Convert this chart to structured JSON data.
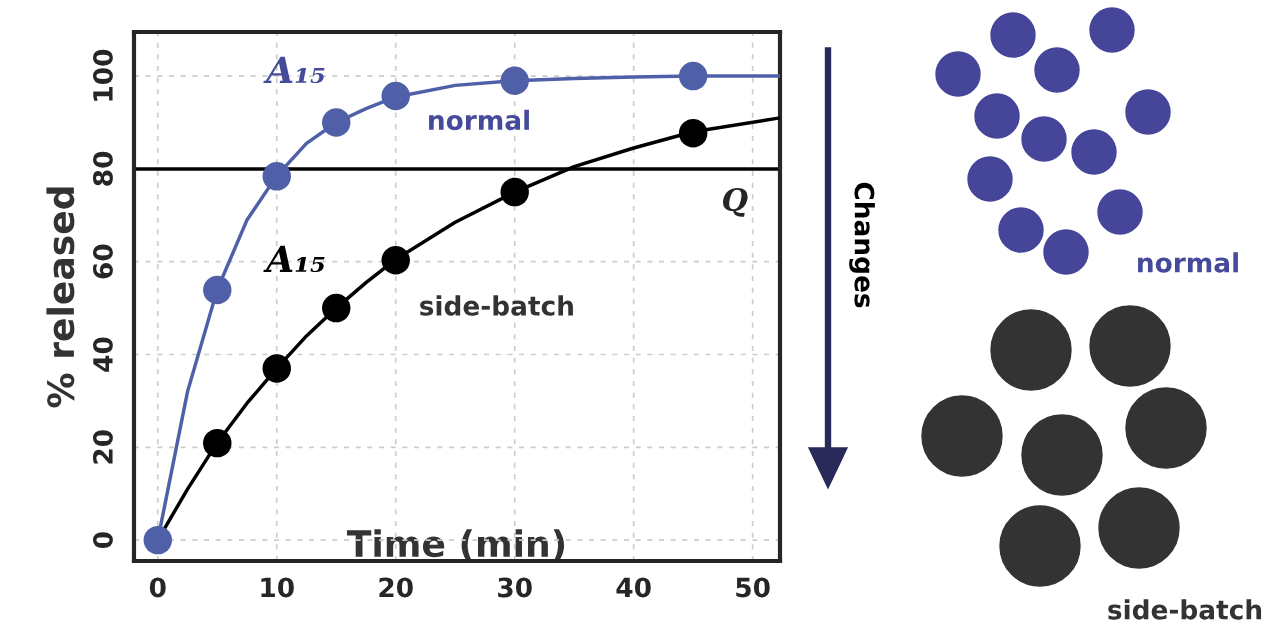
{
  "chart_data": {
    "type": "line",
    "xlabel": "Time (min)",
    "ylabel": "% released",
    "xlim": [
      -2,
      52.3
    ],
    "ylim": [
      -4.5,
      109.5
    ],
    "xticks": [
      0,
      10,
      20,
      30,
      40,
      50
    ],
    "yticks": [
      0,
      20,
      40,
      60,
      80,
      100
    ],
    "grid": true,
    "legend": false,
    "marker": "circle",
    "line_style": "solid",
    "series": [
      {
        "marker": "none",
        "color": "#5060a8",
        "x": [
          0,
          2.5,
          5,
          7.5,
          10,
          12.5,
          15,
          17.5,
          20,
          25,
          30,
          35,
          40,
          45,
          52.3
        ],
        "values": [
          0,
          32,
          54,
          69,
          78.5,
          85.5,
          90,
          93,
          95.5,
          98,
          99,
          99.5,
          99.8,
          100,
          100
        ]
      },
      {
        "marker": "none",
        "color": "#000000",
        "x": [
          0,
          2.5,
          5,
          7.5,
          10,
          12.5,
          15,
          17.5,
          20,
          25,
          30,
          35,
          40,
          45,
          52.3
        ],
        "values": [
          0,
          11,
          21,
          29.5,
          37,
          44,
          50,
          55.5,
          60.5,
          68.5,
          75,
          80.5,
          84.5,
          88,
          91
        ]
      },
      {
        "type": "scatter",
        "name": "side-batch",
        "color": "#000000",
        "x": [
          5,
          10,
          15,
          20,
          30,
          45
        ],
        "values": [
          20.9,
          37,
          50,
          60.3,
          75,
          87.7
        ]
      },
      {
        "type": "scatter",
        "name": "normal",
        "color": "#5060a8",
        "x": [
          0,
          5,
          10,
          15,
          20,
          30,
          45
        ],
        "values": [
          0,
          53.9,
          78.4,
          90,
          95.7,
          99,
          100
        ]
      }
    ],
    "ref_lines": [
      {
        "axis": "y",
        "value": 80,
        "label": "Q",
        "color": "#000000"
      }
    ],
    "annotations": [
      "A₁₅",
      "A₁₅",
      "Changes",
      "normal",
      "side-batch"
    ]
  }
}
